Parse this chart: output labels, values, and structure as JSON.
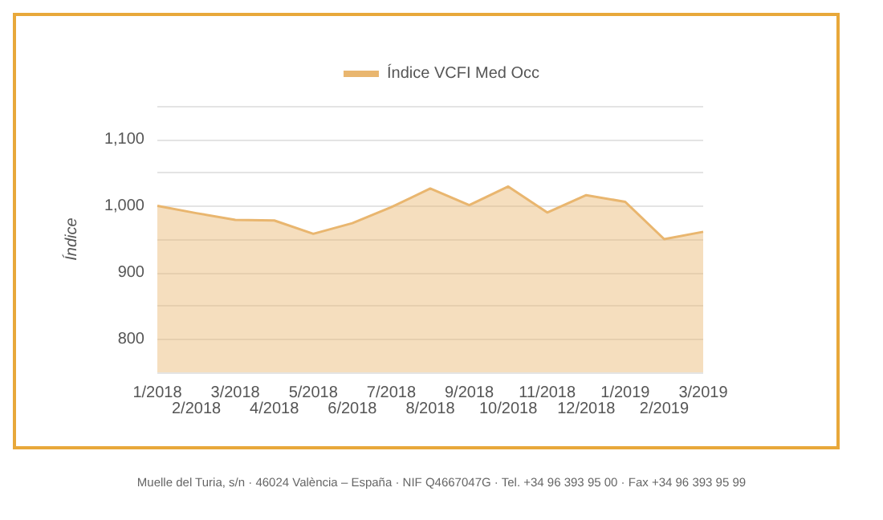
{
  "chart_data": {
    "type": "area",
    "ylabel": "Índice",
    "categories": [
      "1/2018",
      "2/2018",
      "3/2018",
      "4/2018",
      "5/2018",
      "6/2018",
      "7/2018",
      "8/2018",
      "9/2018",
      "10/2018",
      "11/2018",
      "12/2018",
      "1/2019",
      "2/2019",
      "3/2019"
    ],
    "series": [
      {
        "name": "Índice VCFI Med Occ",
        "color": "#e9b66f",
        "values": [
          1000,
          989,
          979,
          978,
          958,
          974,
          998,
          1026,
          1001,
          1029,
          990,
          1016,
          1006,
          950,
          961
        ]
      }
    ],
    "ylim": [
      750,
      1150
    ],
    "yticks": [
      {
        "value": 750,
        "label": null
      },
      800,
      {
        "value": 850,
        "label": null
      },
      900,
      {
        "value": 950,
        "label": null
      },
      {
        "value": 1000,
        "label": "1,000"
      },
      {
        "value": 1050,
        "label": null
      },
      {
        "value": 1100,
        "label": "1,100"
      },
      {
        "value": 1150,
        "label": null
      }
    ],
    "grid": "y",
    "legend": "top",
    "marker": "none",
    "annotations": [
      "Muelle del Turia, s/n · 46024 València – España · NIF Q4667047G · Tel. +34 96 393 95 00 · Fax +34 96 393 95 99"
    ]
  }
}
